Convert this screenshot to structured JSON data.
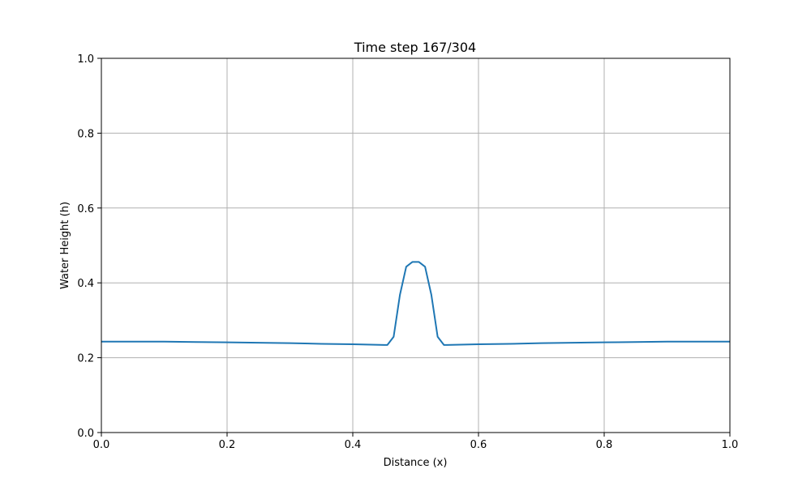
{
  "chart_data": {
    "type": "line",
    "title": "Time step 167/304",
    "xlabel": "Distance (x)",
    "ylabel": "Water Height (h)",
    "xlim": [
      0.0,
      1.0
    ],
    "ylim": [
      0.0,
      1.0
    ],
    "xticks": [
      0.0,
      0.2,
      0.4,
      0.6,
      0.8,
      1.0
    ],
    "xtick_labels": [
      "0.0",
      "0.2",
      "0.4",
      "0.6",
      "0.8",
      "1.0"
    ],
    "yticks": [
      0.0,
      0.2,
      0.4,
      0.6,
      0.8,
      1.0
    ],
    "ytick_labels": [
      "0.0",
      "0.2",
      "0.4",
      "0.6",
      "0.8",
      "1.0"
    ],
    "grid": true,
    "series": [
      {
        "color": "#1f77b4",
        "x": [
          0.0,
          0.05,
          0.1,
          0.15,
          0.2,
          0.25,
          0.3,
          0.35,
          0.4,
          0.45,
          0.455,
          0.465,
          0.475,
          0.485,
          0.495,
          0.505,
          0.515,
          0.525,
          0.535,
          0.545,
          0.55,
          0.6,
          0.65,
          0.7,
          0.75,
          0.8,
          0.85,
          0.9,
          0.95,
          1.0
        ],
        "y": [
          0.243,
          0.243,
          0.243,
          0.242,
          0.241,
          0.24,
          0.239,
          0.237,
          0.236,
          0.234,
          0.234,
          0.256,
          0.368,
          0.443,
          0.456,
          0.456,
          0.443,
          0.368,
          0.256,
          0.234,
          0.234,
          0.236,
          0.237,
          0.239,
          0.24,
          0.241,
          0.242,
          0.243,
          0.243,
          0.243
        ]
      }
    ]
  }
}
